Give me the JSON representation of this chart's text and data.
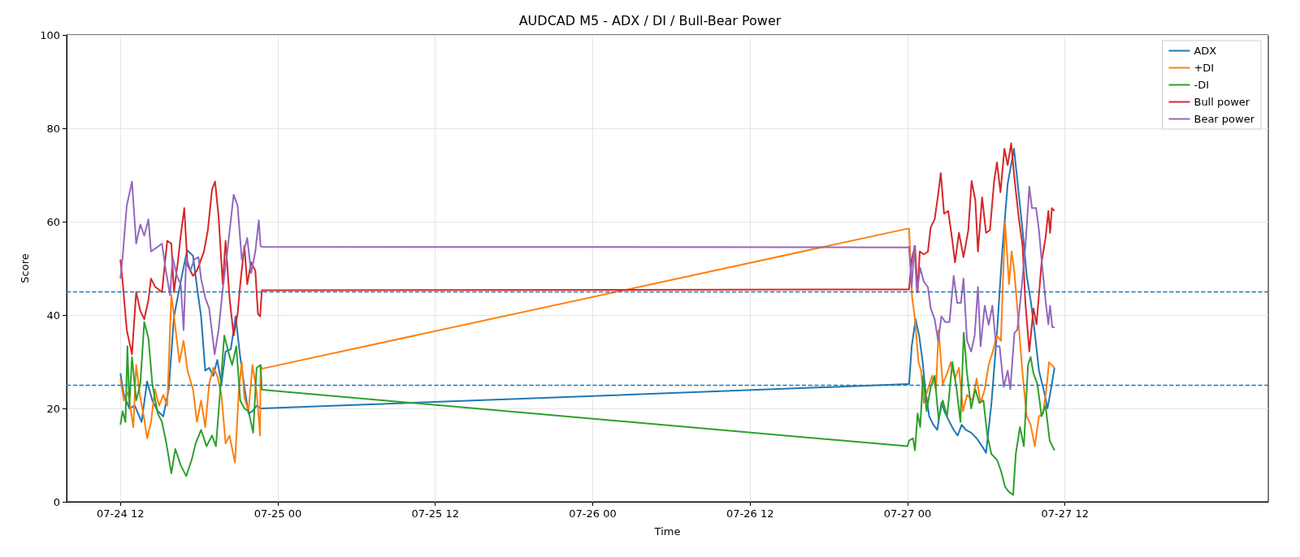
{
  "chart_data": {
    "type": "line",
    "title": "AUDCAD M5 - ADX / DI / Bull-Bear Power",
    "xlabel": "Time",
    "ylabel": "Score",
    "xlim": [
      "--07-24T07:54",
      "--07-28T03:30"
    ],
    "xticks": [
      {
        "value": "--07-24T12:00",
        "label": "07-24 12"
      },
      {
        "value": "--07-25T00:00",
        "label": "07-25 00"
      },
      {
        "value": "--07-25T12:00",
        "label": "07-25 12"
      },
      {
        "value": "--07-26T00:00",
        "label": "07-26 00"
      },
      {
        "value": "--07-26T12:00",
        "label": "07-26 12"
      },
      {
        "value": "--07-27T00:00",
        "label": "07-27 00"
      },
      {
        "value": "--07-27T12:00",
        "label": "07-27 12"
      }
    ],
    "ylim": [
      0,
      100
    ],
    "yticks": [
      0,
      20,
      40,
      60,
      80,
      100
    ],
    "grid": true,
    "legend": "top right",
    "ref_lines": [
      {
        "axis": "y",
        "value": 45,
        "color": "#1f77b4",
        "line_style": "dashed"
      },
      {
        "axis": "y",
        "value": 25,
        "color": "#1f77b4",
        "line_style": "dashed"
      }
    ],
    "series": [
      {
        "name": "ADX",
        "color": "#1f77b4",
        "x": [
          "--07-24T12:00",
          "--07-24T12:16",
          "--07-24T12:41",
          "--07-24T13:06",
          "--07-24T13:37",
          "--07-24T14:02",
          "--07-24T14:26",
          "--07-24T14:51",
          "--07-24T15:16",
          "--07-24T15:41",
          "--07-24T16:05",
          "--07-24T16:36",
          "--07-24T17:05",
          "--07-24T17:32",
          "--07-24T17:50",
          "--07-24T18:09",
          "--07-24T18:28",
          "--07-24T18:46",
          "--07-24T19:05",
          "--07-24T19:23",
          "--07-24T19:42",
          "--07-24T20:01",
          "--07-24T20:25",
          "--07-24T20:47",
          "--07-24T21:08",
          "--07-24T21:27",
          "--07-24T21:46",
          "--07-24T22:04",
          "--07-24T22:23",
          "--07-24T22:41",
          "--07-24T22:47",
          "--07-27T00:00",
          "--07-27T00:07",
          "--07-27T00:19",
          "--07-27T00:37",
          "--07-27T00:53",
          "--07-27T01:08",
          "--07-27T01:20",
          "--07-27T01:39",
          "--07-27T01:58",
          "--07-27T02:16",
          "--07-27T02:35",
          "--07-27T02:53",
          "--07-27T03:12",
          "--07-27T03:31",
          "--07-27T03:49",
          "--07-27T04:08",
          "--07-27T04:26",
          "--07-27T04:51",
          "--07-27T05:16",
          "--07-27T05:41",
          "--07-27T05:59",
          "--07-27T06:24",
          "--07-27T06:49",
          "--07-27T07:13",
          "--07-27T07:38",
          "--07-27T08:07",
          "--07-27T08:28",
          "--07-27T08:46",
          "--07-27T09:05",
          "--07-27T09:23",
          "--07-27T09:42",
          "--07-27T10:01",
          "--07-27T10:25",
          "--07-27T10:40",
          "--07-27T10:56",
          "--07-27T11:12"
        ],
        "values": [
          27.5,
          22.9,
          20.0,
          20.6,
          17.1,
          25.8,
          21.7,
          19.4,
          18.3,
          24.1,
          39.7,
          47.2,
          53.9,
          52.7,
          46.1,
          39.7,
          28.1,
          28.7,
          27,
          30.4,
          25.2,
          32.2,
          32.7,
          39.7,
          31,
          24.6,
          18.9,
          19.4,
          20.6,
          20.0,
          20.0,
          25.2,
          25.2,
          33.3,
          39.1,
          35.6,
          30.4,
          24.6,
          18.3,
          16.5,
          15.4,
          21.2,
          18.9,
          17.1,
          15.4,
          14.2,
          16.5,
          15.4,
          14.8,
          13.6,
          11.9,
          10.5,
          21.2,
          36.2,
          53.6,
          68.1,
          75.6,
          66.3,
          58.2,
          48.4,
          43.2,
          36.2,
          28.1,
          23.5,
          20,
          24.1,
          28.7
        ]
      },
      {
        "name": "+DI",
        "color": "#ff7f0e",
        "x": [
          "--07-24T12:00",
          "--07-24T12:16",
          "--07-24T12:35",
          "--07-24T12:59",
          "--07-24T13:12",
          "--07-24T13:31",
          "--07-24T13:49",
          "--07-24T14:02",
          "--07-24T14:20",
          "--07-24T14:38",
          "--07-24T14:57",
          "--07-24T15:16",
          "--07-24T15:34",
          "--07-24T15:53",
          "--07-24T16:11",
          "--07-24T16:30",
          "--07-24T16:49",
          "--07-24T17:07",
          "--07-24T17:32",
          "--07-24T17:50",
          "--07-24T18:09",
          "--07-24T18:28",
          "--07-24T18:46",
          "--07-24T19:05",
          "--07-24T19:23",
          "--07-24T19:42",
          "--07-24T20:01",
          "--07-24T20:19",
          "--07-24T20:44",
          "--07-24T21:02",
          "--07-24T21:15",
          "--07-24T21:27",
          "--07-24T21:46",
          "--07-24T22:04",
          "--07-24T22:23",
          "--07-24T22:39",
          "--07-24T22:41",
          "--07-24T22:47",
          "--07-27T00:00",
          "--07-27T00:07",
          "--07-27T00:21",
          "--07-27T00:34",
          "--07-27T00:50",
          "--07-27T01:02",
          "--07-27T01:14",
          "--07-27T01:33",
          "--07-27T01:52",
          "--07-27T02:10",
          "--07-27T02:22",
          "--07-27T02:41",
          "--07-27T03:01",
          "--07-27T03:18",
          "--07-27T03:37",
          "--07-27T03:55",
          "--07-27T04:14",
          "--07-27T04:32",
          "--07-27T04:57",
          "--07-27T05:16",
          "--07-27T05:34",
          "--07-27T05:53",
          "--07-27T06:11",
          "--07-27T06:30",
          "--07-27T06:49",
          "--07-27T07:07",
          "--07-27T07:26",
          "--07-27T07:44",
          "--07-27T07:56",
          "--07-27T08:09",
          "--07-27T08:28",
          "--07-27T08:46",
          "--07-27T09:05",
          "--07-27T09:23",
          "--07-27T09:42",
          "--07-27T10:01",
          "--07-27T10:19",
          "--07-27T10:35",
          "--07-27T10:47",
          "--07-27T11:12"
        ],
        "values": [
          26.4,
          21.7,
          23.5,
          16,
          29.3,
          22.3,
          17.7,
          13.6,
          17.1,
          24.1,
          20.6,
          22.9,
          20.6,
          44.3,
          37.4,
          29.9,
          34.5,
          28.1,
          24.1,
          17.1,
          21.7,
          16,
          25.2,
          28.7,
          27,
          22.9,
          12.5,
          14.2,
          8.4,
          24.1,
          29.9,
          22.3,
          19.4,
          29.3,
          23.5,
          14.2,
          29.3,
          28.5,
          58.5,
          58.5,
          43.7,
          39.1,
          29.9,
          28.1,
          21.2,
          24.1,
          27,
          24.1,
          36.8,
          25.2,
          27.5,
          29.9,
          26.4,
          28.7,
          19.4,
          22.9,
          21.7,
          26.4,
          21.2,
          24.1,
          29.3,
          32.2,
          35.6,
          34.5,
          59.9,
          46.6,
          53.6,
          49,
          38,
          27.5,
          18.3,
          16.5,
          11.9,
          18.3,
          18.9,
          24.1,
          29.9,
          28.7
        ]
      },
      {
        "name": "-DI",
        "color": "#2ca02c",
        "x": [
          "--07-24T12:00",
          "--07-24T12:10",
          "--07-24T12:23",
          "--07-24T12:32",
          "--07-24T12:41",
          "--07-24T12:53",
          "--07-24T13:12",
          "--07-24T13:31",
          "--07-24T13:49",
          "--07-24T14:08",
          "--07-24T14:26",
          "--07-24T14:51",
          "--07-24T15:10",
          "--07-24T15:28",
          "--07-24T15:53",
          "--07-24T16:11",
          "--07-24T16:36",
          "--07-24T17:01",
          "--07-24T17:26",
          "--07-24T17:44",
          "--07-24T18:09",
          "--07-24T18:34",
          "--07-24T18:59",
          "--07-24T19:17",
          "--07-24T19:36",
          "--07-24T19:55",
          "--07-24T20:13",
          "--07-24T20:31",
          "--07-24T20:50",
          "--07-24T21:08",
          "--07-24T21:27",
          "--07-24T21:46",
          "--07-24T22:07",
          "--07-24T22:23",
          "--07-24T22:41",
          "--07-24T22:47",
          "--07-27T00:00",
          "--07-27T00:07",
          "--07-27T00:25",
          "--07-27T00:34",
          "--07-27T00:46",
          "--07-27T00:58",
          "--07-27T01:11",
          "--07-27T01:27",
          "--07-27T01:46",
          "--07-27T02:04",
          "--07-27T02:22",
          "--07-27T02:41",
          "--07-27T03:01",
          "--07-27T03:25",
          "--07-27T03:43",
          "--07-27T04:02",
          "--07-27T04:17",
          "--07-27T04:32",
          "--07-27T04:51",
          "--07-27T05:10",
          "--07-27T05:28",
          "--07-27T05:47",
          "--07-27T06:05",
          "--07-27T06:24",
          "--07-27T06:49",
          "--07-27T07:07",
          "--07-27T07:26",
          "--07-27T07:44",
          "--07-27T08:03",
          "--07-27T08:15",
          "--07-27T08:34",
          "--07-27T08:52",
          "--07-27T09:11",
          "--07-27T09:23",
          "--07-27T09:36",
          "--07-27T09:54",
          "--07-27T10:13",
          "--07-27T10:31",
          "--07-27T10:50",
          "--07-27T11:12"
        ],
        "values": [
          16.5,
          19.4,
          17.1,
          33.3,
          20.6,
          31,
          21.7,
          25.2,
          38.5,
          35.1,
          25.2,
          18.9,
          17.1,
          13.1,
          6.1,
          11.3,
          7.8,
          5.5,
          9,
          12.5,
          15.4,
          11.9,
          14.2,
          11.9,
          23.5,
          35.6,
          32.2,
          29.3,
          33.3,
          21.7,
          20,
          19.4,
          14.8,
          28.7,
          29.3,
          24.0,
          11.9,
          13.1,
          13.6,
          11,
          18.9,
          16,
          27,
          19.4,
          24.6,
          27,
          17.7,
          21.7,
          18.3,
          29.9,
          24.6,
          17.1,
          36.2,
          27.5,
          20,
          24.1,
          21.2,
          21.7,
          14.2,
          10.2,
          9,
          6.7,
          3.2,
          2.1,
          1.5,
          10.2,
          16,
          11.9,
          29.3,
          31,
          27.5,
          25.2,
          18.3,
          20.6,
          13.1,
          11
        ]
      },
      {
        "name": "Bull power",
        "color": "#d62728",
        "x": [
          "--07-24T12:00",
          "--07-24T12:10",
          "--07-24T12:29",
          "--07-24T12:53",
          "--07-24T13:12",
          "--07-24T13:31",
          "--07-24T13:49",
          "--07-24T14:08",
          "--07-24T14:20",
          "--07-24T14:38",
          "--07-24T15:10",
          "--07-24T15:34",
          "--07-24T15:53",
          "--07-24T16:05",
          "--07-24T16:24",
          "--07-24T16:36",
          "--07-24T16:52",
          "--07-24T17:07",
          "--07-24T17:32",
          "--07-24T17:50",
          "--07-24T18:22",
          "--07-24T18:40",
          "--07-24T18:59",
          "--07-24T19:13",
          "--07-24T19:29",
          "--07-24T19:48",
          "--07-24T20:01",
          "--07-24T20:19",
          "--07-24T20:38",
          "--07-24T20:56",
          "--07-24T21:08",
          "--07-24T21:27",
          "--07-24T21:40",
          "--07-24T21:58",
          "--07-24T22:17",
          "--07-24T22:29",
          "--07-24T22:39",
          "--07-24T22:47",
          "--07-27T00:00",
          "--07-27T00:07",
          "--07-27T00:19",
          "--07-27T00:34",
          "--07-27T00:46",
          "--07-27T00:56",
          "--07-27T01:14",
          "--07-27T01:33",
          "--07-27T01:46",
          "--07-27T02:04",
          "--07-27T02:20",
          "--07-27T02:32",
          "--07-27T02:47",
          "--07-27T03:06",
          "--07-27T03:25",
          "--07-27T03:37",
          "--07-27T03:55",
          "--07-27T04:16",
          "--07-27T04:38",
          "--07-27T04:53",
          "--07-27T05:10",
          "--07-27T05:22",
          "--07-27T05:41",
          "--07-27T05:59",
          "--07-27T06:17",
          "--07-27T06:36",
          "--07-27T06:49",
          "--07-27T07:05",
          "--07-27T07:23",
          "--07-27T07:38",
          "--07-27T07:54",
          "--07-27T08:09",
          "--07-27T08:28",
          "--07-27T08:46",
          "--07-27T08:59",
          "--07-27T09:17",
          "--07-27T09:36",
          "--07-27T09:50",
          "--07-27T10:13",
          "--07-27T10:31",
          "--07-27T10:44",
          "--07-27T10:52",
          "--07-27T11:00",
          "--07-27T11:12"
        ],
        "values": [
          51.9,
          47.2,
          36.8,
          31.6,
          44.9,
          40.9,
          39.1,
          43.2,
          47.8,
          46.1,
          44.9,
          55.9,
          55.3,
          44.9,
          51.9,
          57.1,
          62.9,
          50.7,
          48.4,
          49.5,
          53.6,
          58.2,
          66.9,
          68.6,
          61.1,
          46.6,
          55.9,
          43.7,
          35.6,
          40.3,
          46.6,
          54.8,
          46.6,
          51.3,
          49.5,
          40.3,
          39.7,
          45.3,
          45.5,
          45.5,
          51.9,
          54.8,
          44.9,
          53.6,
          53,
          53.6,
          58.8,
          60.5,
          65.8,
          70.4,
          61.7,
          62.3,
          55.9,
          51.3,
          57.6,
          52.4,
          58.2,
          68.7,
          64.6,
          53.6,
          65.2,
          57.6,
          58.2,
          68.7,
          72.7,
          66.3,
          75.6,
          72.1,
          76.8,
          69.2,
          61.1,
          54.8,
          42.6,
          32.2,
          41.4,
          38,
          51.3,
          56.5,
          62.3,
          57.6,
          62.9,
          62.3
        ]
      },
      {
        "name": "Bear power",
        "color": "#9467bd",
        "x": [
          "--07-24T12:00",
          "--07-24T12:10",
          "--07-24T12:29",
          "--07-24T12:53",
          "--07-24T13:12",
          "--07-24T13:31",
          "--07-24T13:49",
          "--07-24T14:08",
          "--07-24T14:20",
          "--07-24T14:38",
          "--07-24T15:10",
          "--07-24T15:28",
          "--07-24T15:47",
          "--07-24T15:59",
          "--07-24T16:18",
          "--07-24T16:36",
          "--07-24T16:49",
          "--07-24T17:01",
          "--07-24T17:20",
          "--07-24T17:38",
          "--07-24T17:57",
          "--07-24T18:09",
          "--07-24T18:28",
          "--07-24T18:46",
          "--07-24T19:11",
          "--07-24T19:29",
          "--07-24T19:48",
          "--07-24T20:13",
          "--07-24T20:38",
          "--07-24T20:56",
          "--07-24T21:15",
          "--07-24T21:40",
          "--07-24T21:58",
          "--07-24T22:17",
          "--07-24T22:33",
          "--07-24T22:41",
          "--07-24T22:47",
          "--07-27T00:00",
          "--07-27T00:07",
          "--07-27T00:19",
          "--07-27T00:31",
          "--07-27T00:43",
          "--07-27T00:58",
          "--07-27T01:14",
          "--07-27T01:33",
          "--07-27T01:46",
          "--07-27T02:04",
          "--07-27T02:20",
          "--07-27T02:35",
          "--07-27T02:53",
          "--07-27T03:12",
          "--07-27T03:31",
          "--07-27T03:47",
          "--07-27T04:04",
          "--07-27T04:16",
          "--07-27T04:32",
          "--07-27T04:51",
          "--07-27T05:07",
          "--07-27T05:22",
          "--07-27T05:34",
          "--07-27T05:53",
          "--07-27T06:11",
          "--07-27T06:28",
          "--07-27T06:45",
          "--07-27T07:01",
          "--07-27T07:20",
          "--07-27T07:38",
          "--07-27T07:50",
          "--07-27T08:09",
          "--07-27T08:22",
          "--07-27T08:40",
          "--07-27T08:59",
          "--07-27T09:17",
          "--07-27T09:29",
          "--07-27T09:48",
          "--07-27T10:01",
          "--07-27T10:13",
          "--07-27T10:31",
          "--07-27T10:44",
          "--07-27T10:52",
          "--07-27T11:02",
          "--07-27T11:12"
        ],
        "values": [
          47.8,
          52.4,
          63.4,
          68.6,
          55.3,
          59.4,
          57,
          60.5,
          53.6,
          54.2,
          55.3,
          49.5,
          44.3,
          52.4,
          48.4,
          46.6,
          36.8,
          52.4,
          49.5,
          51.9,
          52.4,
          47.8,
          43.7,
          41.4,
          31.6,
          36.8,
          45.5,
          55.3,
          65.8,
          63.4,
          51.9,
          56.5,
          49,
          53.6,
          60.3,
          54.8,
          54.6,
          54.5,
          54.6,
          46,
          54.8,
          44.9,
          50.1,
          47.2,
          46,
          41.4,
          39.1,
          34.5,
          39.7,
          38.5,
          38.5,
          48.4,
          42.6,
          42.6,
          47.8,
          34.5,
          32.2,
          35.6,
          46,
          33.3,
          42,
          37.9,
          42,
          33.3,
          33.3,
          24.6,
          28.1,
          24.1,
          36.2,
          36.8,
          44.9,
          54.8,
          67.5,
          62.9,
          62.9,
          58.2,
          51.9,
          43.2,
          38,
          42,
          37.4,
          37.4
        ]
      }
    ]
  }
}
